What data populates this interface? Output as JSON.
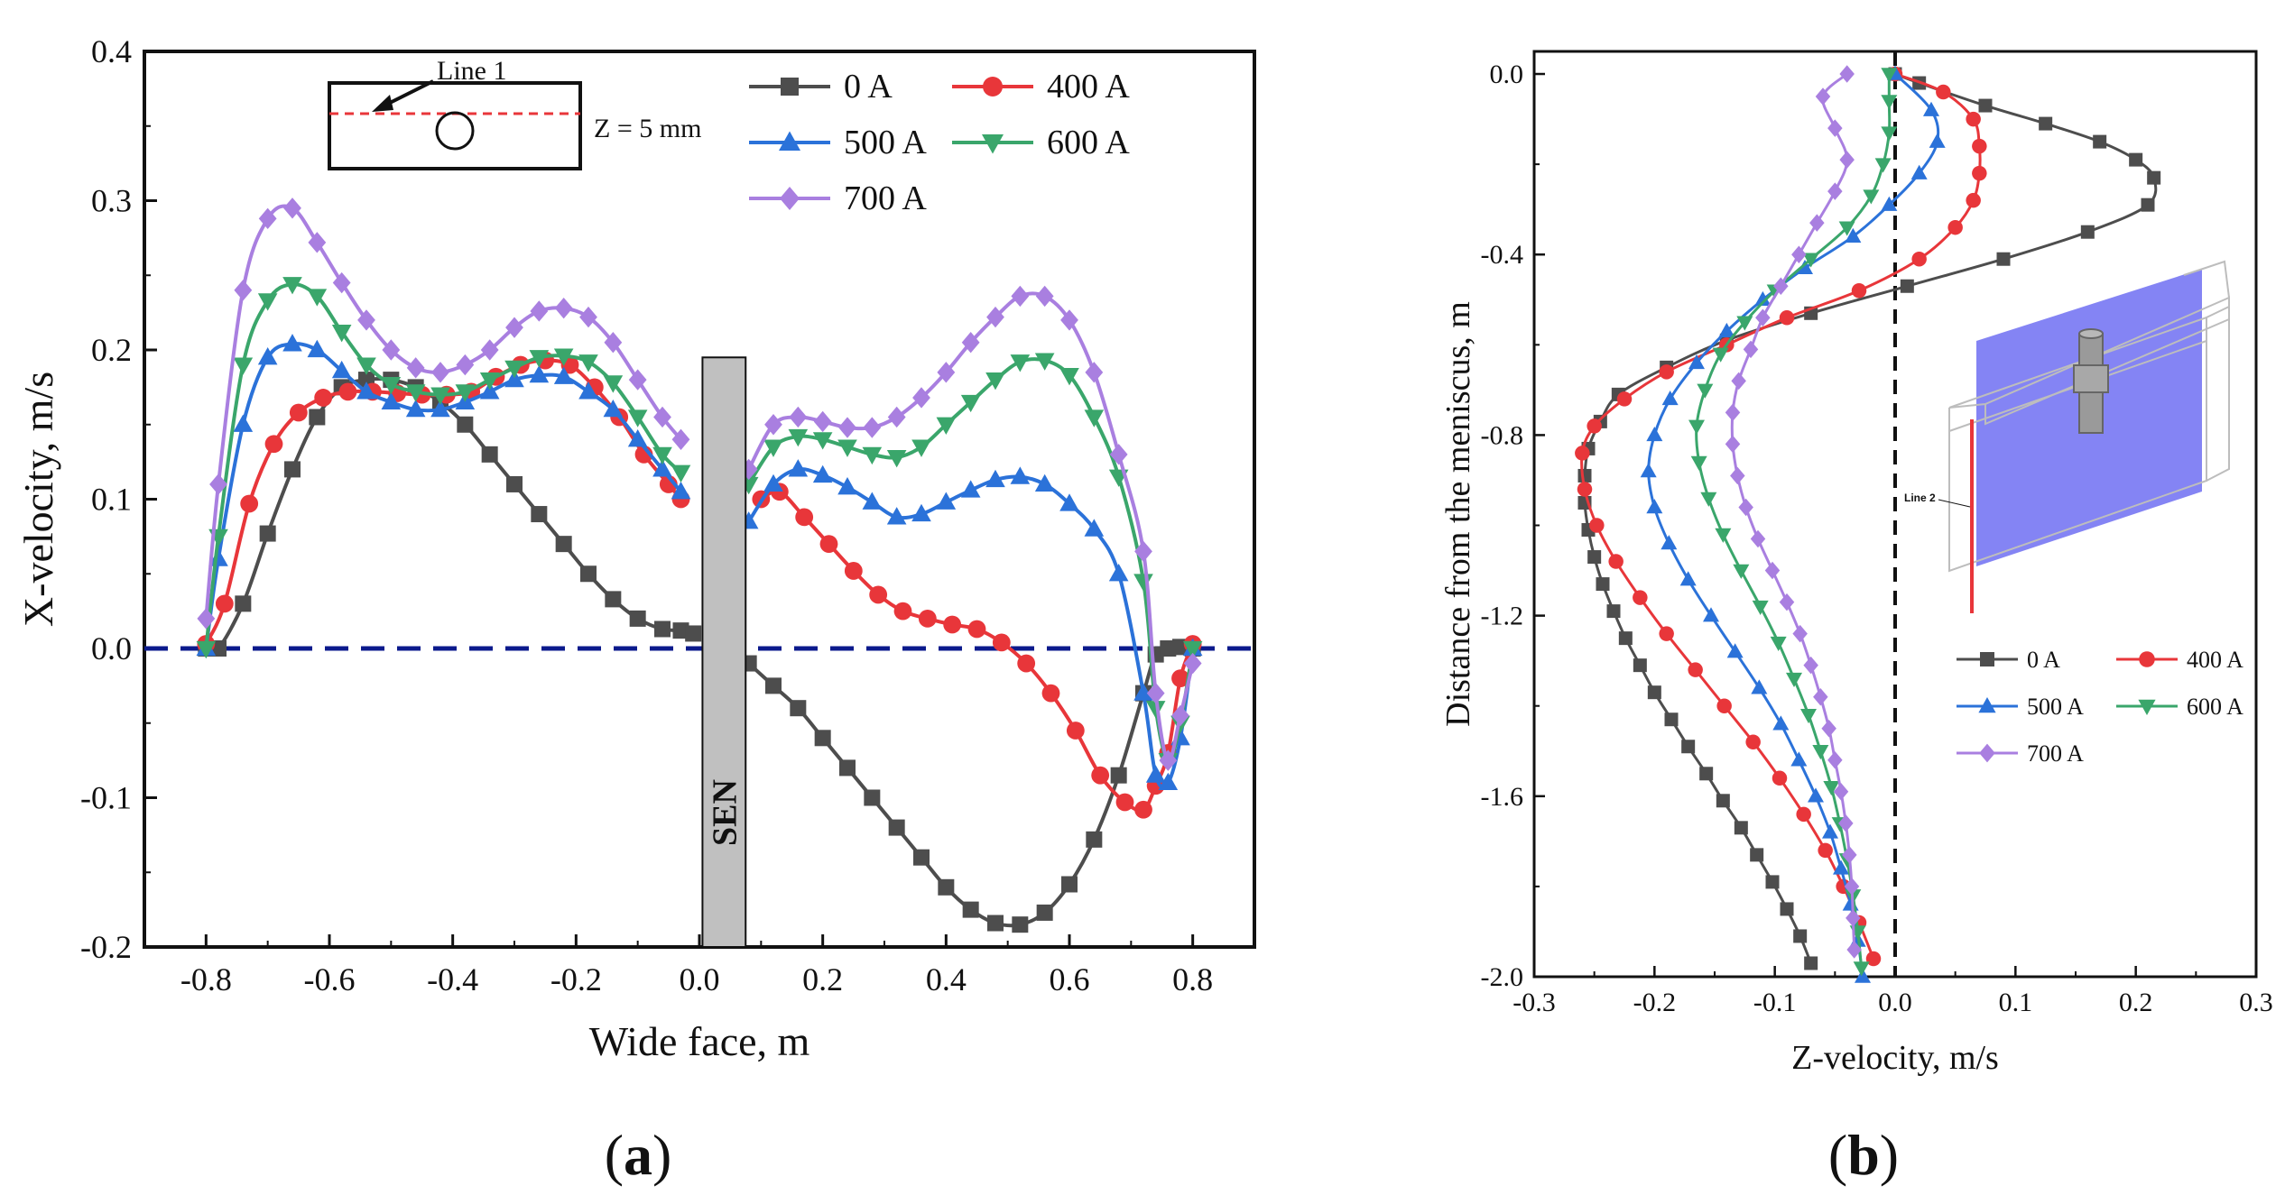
{
  "chart_data": [
    {
      "id": "a",
      "type": "line",
      "panel_label": "(a)",
      "panel_letter": "a",
      "xlabel": "Wide face, m",
      "ylabel": "X-velocity, m/s",
      "xlim": [
        -0.9,
        0.9
      ],
      "ylim": [
        -0.2,
        0.4
      ],
      "xticks": [
        "-0.8",
        "-0.6",
        "-0.4",
        "-0.2",
        "0.0",
        "0.2",
        "0.4",
        "0.6",
        "0.8"
      ],
      "yticks": [
        "-0.2",
        "-0.1",
        "0.0",
        "0.1",
        "0.2",
        "0.3",
        "0.4"
      ],
      "sen_label": "SEN",
      "inset": {
        "line_label": "Line 1",
        "z_label": "Z = 5 mm"
      },
      "series": [
        {
          "name": "0 A",
          "color": "#4d4d4d",
          "marker": "square",
          "x": [
            -0.8,
            -0.78,
            -0.74,
            -0.7,
            -0.66,
            -0.62,
            -0.58,
            -0.54,
            -0.5,
            -0.46,
            -0.42,
            -0.38,
            -0.34,
            -0.3,
            -0.26,
            -0.22,
            -0.18,
            -0.14,
            -0.1,
            -0.06,
            -0.03,
            -0.01,
            0.08,
            0.12,
            0.16,
            0.2,
            0.24,
            0.28,
            0.32,
            0.36,
            0.4,
            0.44,
            0.48,
            0.52,
            0.56,
            0.6,
            0.64,
            0.68,
            0.72,
            0.74,
            0.76,
            0.78,
            0.8
          ],
          "y": [
            0.0,
            0.0,
            0.03,
            0.077,
            0.12,
            0.155,
            0.175,
            0.18,
            0.18,
            0.175,
            0.165,
            0.15,
            0.13,
            0.11,
            0.09,
            0.07,
            0.05,
            0.033,
            0.02,
            0.013,
            0.012,
            0.01,
            -0.01,
            -0.025,
            -0.04,
            -0.06,
            -0.08,
            -0.1,
            -0.12,
            -0.14,
            -0.16,
            -0.175,
            -0.184,
            -0.185,
            -0.177,
            -0.158,
            -0.128,
            -0.085,
            -0.03,
            -0.004,
            0.0,
            0.001,
            0.0
          ]
        },
        {
          "name": "400 A",
          "color": "#e8363a",
          "marker": "circle",
          "x": [
            -0.8,
            -0.77,
            -0.73,
            -0.69,
            -0.65,
            -0.61,
            -0.57,
            -0.53,
            -0.49,
            -0.45,
            -0.41,
            -0.37,
            -0.33,
            -0.29,
            -0.25,
            -0.21,
            -0.17,
            -0.13,
            -0.09,
            -0.05,
            -0.03,
            0.1,
            0.13,
            0.17,
            0.21,
            0.25,
            0.29,
            0.33,
            0.37,
            0.41,
            0.45,
            0.49,
            0.53,
            0.57,
            0.61,
            0.65,
            0.69,
            0.72,
            0.74,
            0.76,
            0.78,
            0.8
          ],
          "y": [
            0.003,
            0.03,
            0.097,
            0.137,
            0.158,
            0.168,
            0.172,
            0.172,
            0.171,
            0.17,
            0.17,
            0.172,
            0.182,
            0.19,
            0.193,
            0.19,
            0.175,
            0.155,
            0.13,
            0.11,
            0.1,
            0.1,
            0.105,
            0.088,
            0.07,
            0.052,
            0.036,
            0.025,
            0.02,
            0.016,
            0.013,
            0.004,
            -0.01,
            -0.03,
            -0.055,
            -0.085,
            -0.103,
            -0.108,
            -0.092,
            -0.07,
            -0.02,
            0.003
          ]
        },
        {
          "name": "500 A",
          "color": "#2b72d9",
          "marker": "triangle-up",
          "x": [
            -0.8,
            -0.78,
            -0.74,
            -0.7,
            -0.66,
            -0.62,
            -0.58,
            -0.54,
            -0.5,
            -0.46,
            -0.42,
            -0.38,
            -0.34,
            -0.3,
            -0.26,
            -0.22,
            -0.18,
            -0.14,
            -0.1,
            -0.06,
            -0.03,
            0.08,
            0.12,
            0.16,
            0.2,
            0.24,
            0.28,
            0.32,
            0.36,
            0.4,
            0.44,
            0.48,
            0.52,
            0.56,
            0.6,
            0.64,
            0.68,
            0.72,
            0.74,
            0.76,
            0.78,
            0.8
          ],
          "y": [
            0.0,
            0.06,
            0.15,
            0.195,
            0.204,
            0.2,
            0.186,
            0.172,
            0.165,
            0.16,
            0.16,
            0.165,
            0.172,
            0.18,
            0.183,
            0.182,
            0.172,
            0.16,
            0.14,
            0.12,
            0.105,
            0.085,
            0.11,
            0.12,
            0.116,
            0.108,
            0.098,
            0.088,
            0.09,
            0.098,
            0.106,
            0.113,
            0.115,
            0.11,
            0.097,
            0.08,
            0.05,
            -0.03,
            -0.085,
            -0.09,
            -0.06,
            0.0
          ]
        },
        {
          "name": "600 A",
          "color": "#3aa66b",
          "marker": "triangle-down",
          "x": [
            -0.8,
            -0.78,
            -0.74,
            -0.7,
            -0.66,
            -0.62,
            -0.58,
            -0.54,
            -0.5,
            -0.46,
            -0.42,
            -0.38,
            -0.34,
            -0.3,
            -0.26,
            -0.22,
            -0.18,
            -0.14,
            -0.1,
            -0.06,
            -0.03,
            0.08,
            0.12,
            0.16,
            0.2,
            0.24,
            0.28,
            0.32,
            0.36,
            0.4,
            0.44,
            0.48,
            0.52,
            0.56,
            0.6,
            0.64,
            0.68,
            0.72,
            0.74,
            0.76,
            0.78,
            0.8
          ],
          "y": [
            0.0,
            0.075,
            0.19,
            0.233,
            0.244,
            0.236,
            0.212,
            0.19,
            0.177,
            0.172,
            0.17,
            0.172,
            0.18,
            0.188,
            0.195,
            0.196,
            0.192,
            0.178,
            0.155,
            0.13,
            0.118,
            0.11,
            0.135,
            0.142,
            0.14,
            0.135,
            0.13,
            0.128,
            0.135,
            0.15,
            0.165,
            0.18,
            0.192,
            0.193,
            0.183,
            0.155,
            0.115,
            0.045,
            -0.04,
            -0.075,
            -0.05,
            0.0
          ]
        },
        {
          "name": "700 A",
          "color": "#a97fe0",
          "marker": "diamond",
          "x": [
            -0.8,
            -0.78,
            -0.74,
            -0.7,
            -0.66,
            -0.62,
            -0.58,
            -0.54,
            -0.5,
            -0.46,
            -0.42,
            -0.38,
            -0.34,
            -0.3,
            -0.26,
            -0.22,
            -0.18,
            -0.14,
            -0.1,
            -0.06,
            -0.03,
            0.08,
            0.12,
            0.16,
            0.2,
            0.24,
            0.28,
            0.32,
            0.36,
            0.4,
            0.44,
            0.48,
            0.52,
            0.56,
            0.6,
            0.64,
            0.68,
            0.72,
            0.74,
            0.76,
            0.78,
            0.8
          ],
          "y": [
            0.02,
            0.11,
            0.24,
            0.288,
            0.295,
            0.272,
            0.245,
            0.22,
            0.2,
            0.188,
            0.185,
            0.19,
            0.2,
            0.215,
            0.226,
            0.228,
            0.222,
            0.205,
            0.18,
            0.155,
            0.14,
            0.12,
            0.15,
            0.155,
            0.152,
            0.148,
            0.148,
            0.155,
            0.168,
            0.185,
            0.205,
            0.222,
            0.236,
            0.236,
            0.22,
            0.185,
            0.13,
            0.065,
            -0.03,
            -0.075,
            -0.045,
            -0.01
          ]
        }
      ]
    },
    {
      "id": "b",
      "type": "line",
      "panel_label": "(b)",
      "panel_letter": "b",
      "xlabel": "Z-velocity, m/s",
      "ylabel": "Distance from the meniscus, m",
      "xlim": [
        -0.3,
        0.3
      ],
      "ylim": [
        -2.0,
        0.05
      ],
      "xticks": [
        "-0.3",
        "-0.2",
        "-0.1",
        "0.0",
        "0.1",
        "0.2",
        "0.3"
      ],
      "yticks": [
        "0.0",
        "-0.4",
        "-0.8",
        "-1.2",
        "-1.6",
        "-2.0"
      ],
      "inset_label": "Line 2",
      "series": [
        {
          "name": "0 A",
          "color": "#4d4d4d",
          "marker": "square",
          "y": [
            0.0,
            -0.02,
            -0.07,
            -0.11,
            -0.15,
            -0.19,
            -0.23,
            -0.29,
            -0.35,
            -0.41,
            -0.47,
            -0.53,
            -0.59,
            -0.65,
            -0.71,
            -0.77,
            -0.83,
            -0.89,
            -0.95,
            -1.01,
            -1.07,
            -1.13,
            -1.19,
            -1.25,
            -1.31,
            -1.37,
            -1.43,
            -1.49,
            -1.55,
            -1.61,
            -1.67,
            -1.73,
            -1.79,
            -1.85,
            -1.91,
            -1.97
          ],
          "x": [
            0.0,
            0.02,
            0.075,
            0.125,
            0.17,
            0.2,
            0.215,
            0.21,
            0.16,
            0.09,
            0.01,
            -0.07,
            -0.14,
            -0.19,
            -0.23,
            -0.245,
            -0.255,
            -0.258,
            -0.258,
            -0.255,
            -0.25,
            -0.243,
            -0.234,
            -0.224,
            -0.212,
            -0.2,
            -0.186,
            -0.172,
            -0.157,
            -0.143,
            -0.128,
            -0.115,
            -0.102,
            -0.09,
            -0.079,
            -0.07
          ]
        },
        {
          "name": "400 A",
          "color": "#e8363a",
          "marker": "circle",
          "y": [
            0.0,
            -0.04,
            -0.1,
            -0.16,
            -0.22,
            -0.28,
            -0.34,
            -0.41,
            -0.48,
            -0.54,
            -0.6,
            -0.66,
            -0.72,
            -0.78,
            -0.84,
            -0.92,
            -1.0,
            -1.08,
            -1.16,
            -1.24,
            -1.32,
            -1.4,
            -1.48,
            -1.56,
            -1.64,
            -1.72,
            -1.8,
            -1.88,
            -1.96
          ],
          "x": [
            0.0,
            0.04,
            0.065,
            0.07,
            0.07,
            0.065,
            0.05,
            0.02,
            -0.03,
            -0.09,
            -0.14,
            -0.19,
            -0.225,
            -0.25,
            -0.26,
            -0.258,
            -0.248,
            -0.232,
            -0.212,
            -0.19,
            -0.166,
            -0.142,
            -0.118,
            -0.096,
            -0.076,
            -0.058,
            -0.043,
            -0.03,
            -0.018
          ]
        },
        {
          "name": "500 A",
          "color": "#2b72d9",
          "marker": "triangle-up",
          "y": [
            0.0,
            -0.08,
            -0.15,
            -0.22,
            -0.29,
            -0.36,
            -0.43,
            -0.5,
            -0.57,
            -0.64,
            -0.72,
            -0.8,
            -0.88,
            -0.96,
            -1.04,
            -1.12,
            -1.2,
            -1.28,
            -1.36,
            -1.44,
            -1.52,
            -1.6,
            -1.68,
            -1.76,
            -1.84,
            -1.92,
            -2.0
          ],
          "x": [
            0.0,
            0.03,
            0.035,
            0.02,
            -0.005,
            -0.035,
            -0.075,
            -0.11,
            -0.14,
            -0.165,
            -0.187,
            -0.2,
            -0.205,
            -0.2,
            -0.188,
            -0.172,
            -0.153,
            -0.133,
            -0.113,
            -0.095,
            -0.08,
            -0.066,
            -0.054,
            -0.045,
            -0.037,
            -0.031,
            -0.027
          ]
        },
        {
          "name": "600 A",
          "color": "#3aa66b",
          "marker": "triangle-down",
          "y": [
            0.0,
            -0.06,
            -0.13,
            -0.2,
            -0.27,
            -0.34,
            -0.41,
            -0.48,
            -0.55,
            -0.62,
            -0.7,
            -0.78,
            -0.86,
            -0.94,
            -1.02,
            -1.1,
            -1.18,
            -1.26,
            -1.34,
            -1.42,
            -1.5,
            -1.58,
            -1.66,
            -1.74,
            -1.82,
            -1.9,
            -1.98
          ],
          "x": [
            -0.005,
            -0.005,
            -0.005,
            -0.01,
            -0.02,
            -0.04,
            -0.07,
            -0.1,
            -0.125,
            -0.145,
            -0.158,
            -0.165,
            -0.163,
            -0.155,
            -0.143,
            -0.128,
            -0.112,
            -0.097,
            -0.084,
            -0.072,
            -0.062,
            -0.053,
            -0.046,
            -0.04,
            -0.035,
            -0.031,
            -0.028
          ]
        },
        {
          "name": "700 A",
          "color": "#a97fe0",
          "marker": "diamond",
          "y": [
            0.0,
            -0.05,
            -0.12,
            -0.19,
            -0.26,
            -0.33,
            -0.4,
            -0.47,
            -0.54,
            -0.61,
            -0.68,
            -0.75,
            -0.82,
            -0.89,
            -0.96,
            -1.03,
            -1.1,
            -1.17,
            -1.24,
            -1.31,
            -1.38,
            -1.45,
            -1.52,
            -1.59,
            -1.66,
            -1.73,
            -1.8,
            -1.87,
            -1.94
          ],
          "x": [
            -0.04,
            -0.06,
            -0.05,
            -0.04,
            -0.05,
            -0.065,
            -0.08,
            -0.095,
            -0.11,
            -0.12,
            -0.13,
            -0.135,
            -0.135,
            -0.131,
            -0.124,
            -0.114,
            -0.102,
            -0.09,
            -0.079,
            -0.07,
            -0.062,
            -0.055,
            -0.05,
            -0.045,
            -0.041,
            -0.038,
            -0.036,
            -0.035,
            -0.034
          ]
        }
      ]
    }
  ]
}
